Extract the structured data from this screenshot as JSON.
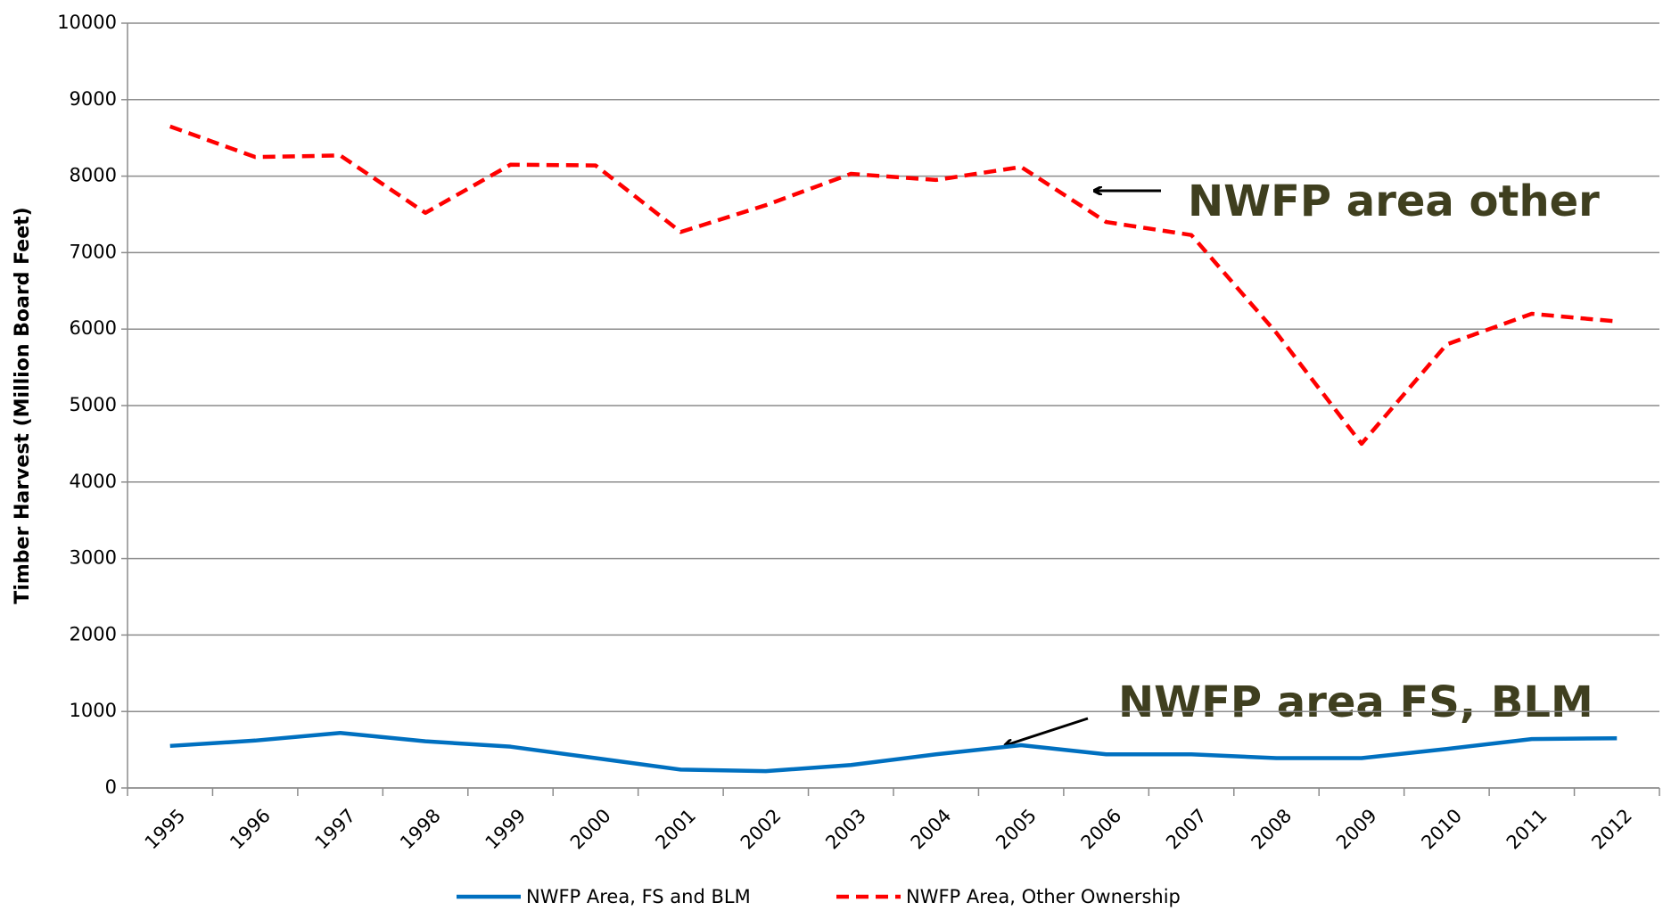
{
  "chart_data": {
    "type": "line",
    "y_label": "Timber Harvest (Million Board Feet)",
    "categories": [
      "1995",
      "1996",
      "1997",
      "1998",
      "1999",
      "2000",
      "2001",
      "2002",
      "2003",
      "2004",
      "2005",
      "2006",
      "2007",
      "2008",
      "2009",
      "2010",
      "2011",
      "2012"
    ],
    "series": [
      {
        "name": "NWFP Area, FS and BLM",
        "color": "#0070c0",
        "dash": false,
        "values": [
          550,
          620,
          720,
          610,
          540,
          390,
          240,
          220,
          300,
          440,
          560,
          440,
          440,
          390,
          390,
          510,
          640,
          650
        ]
      },
      {
        "name": "NWFP Area, Other Ownership",
        "color": "#ff0000",
        "dash": true,
        "values": [
          8650,
          8250,
          8270,
          7520,
          8150,
          8140,
          7270,
          7620,
          8030,
          7950,
          8120,
          7400,
          7230,
          5950,
          4500,
          5800,
          6200,
          6100
        ]
      }
    ],
    "ylim": [
      0,
      10000
    ],
    "yticks": [
      0,
      1000,
      2000,
      3000,
      4000,
      5000,
      6000,
      7000,
      8000,
      9000,
      10000
    ],
    "grid": true,
    "legend": "bottom",
    "annotations": [
      "NWFP area other",
      "NWFP area FS, BLM"
    ]
  }
}
